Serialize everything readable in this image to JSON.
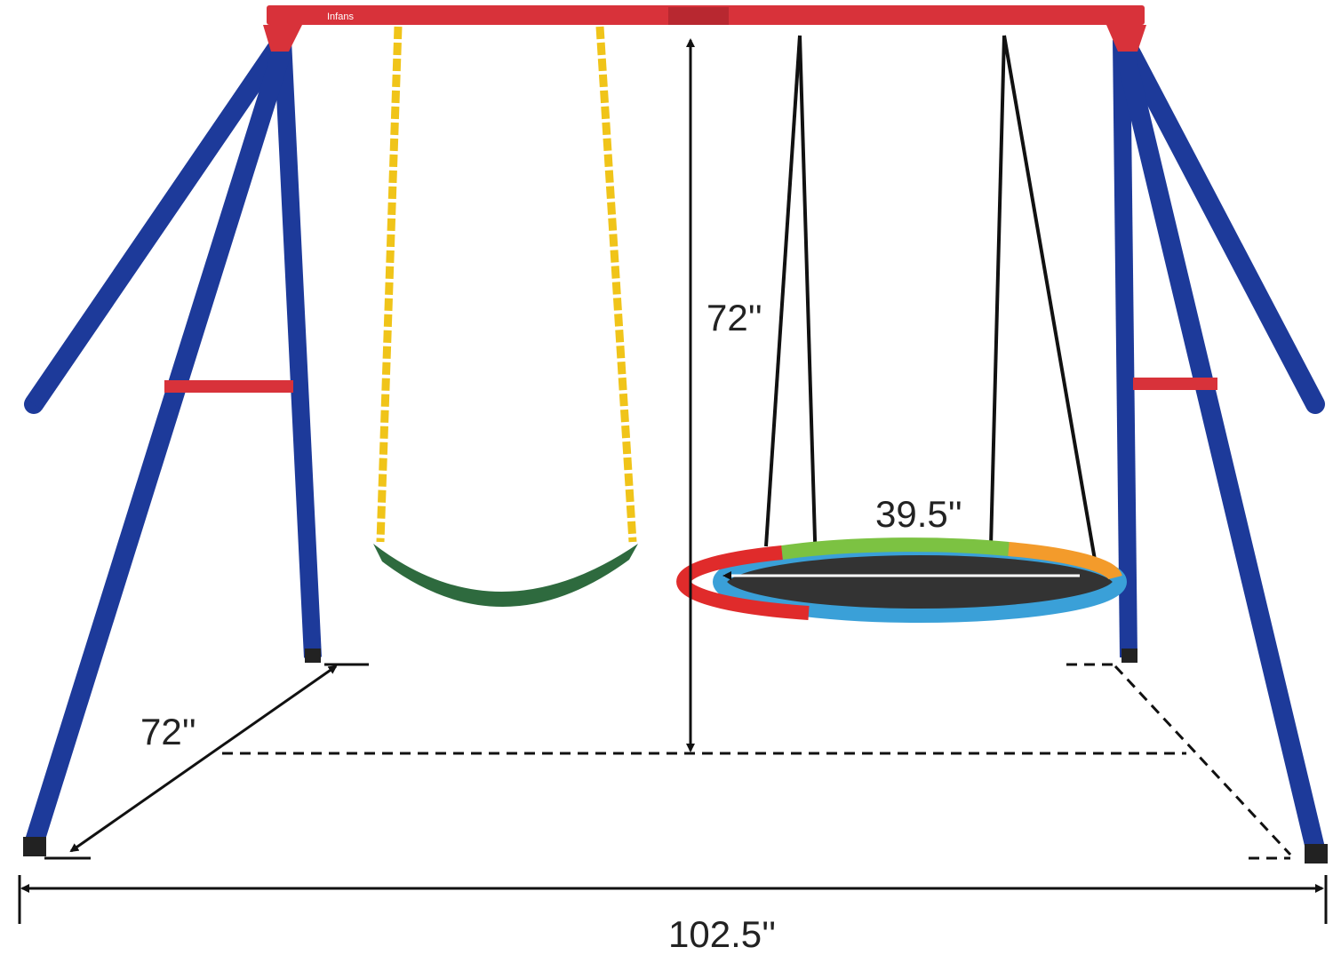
{
  "brand": "Infans",
  "dimensions": {
    "height": "72''",
    "depth": "72''",
    "nest_diameter": "39.5''",
    "width": "102.5''"
  }
}
